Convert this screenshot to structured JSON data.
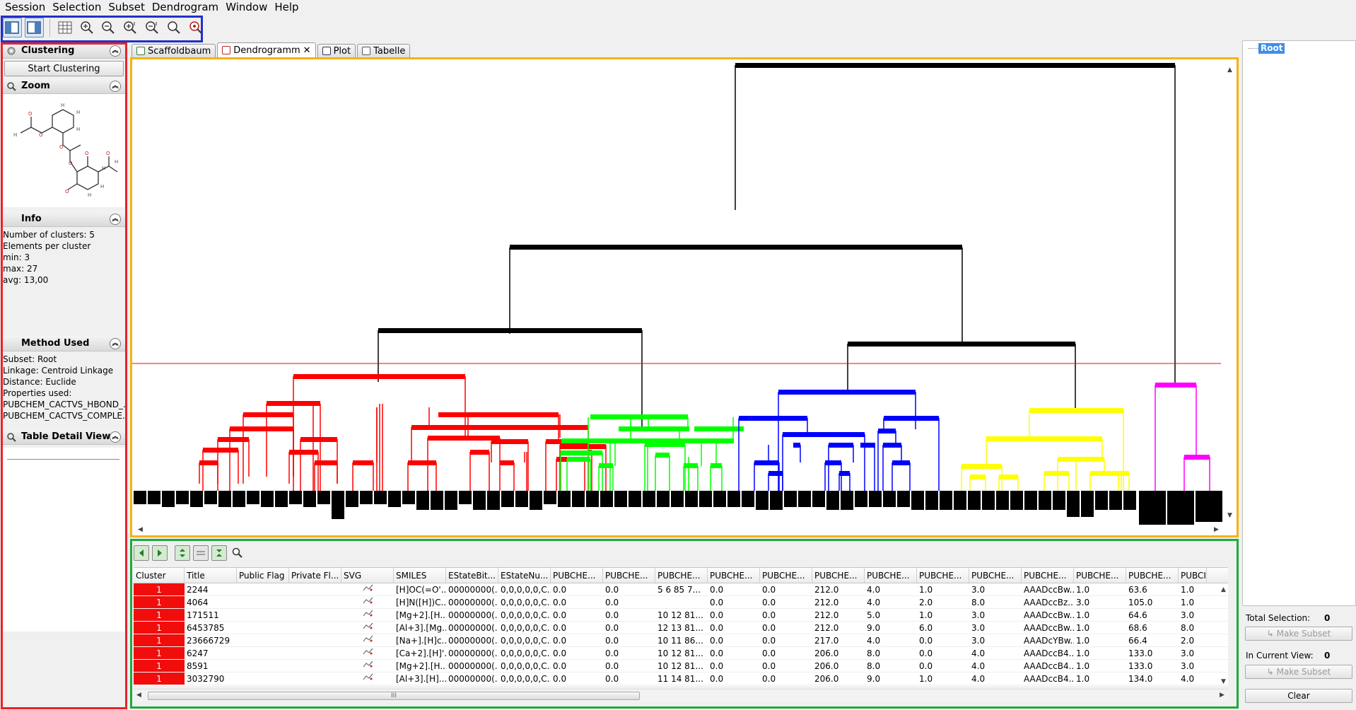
{
  "menu": [
    "Session",
    "Selection",
    "Subset",
    "Dendrogram",
    "Window",
    "Help"
  ],
  "toolbar_icons": [
    "layout-left-icon",
    "layout-right-icon",
    "grid-icon",
    "zoom-in-x-icon",
    "zoom-out-x-icon",
    "zoom-in-y-icon",
    "zoom-out-y-icon",
    "zoom-in-icon",
    "zoom-reset-icon"
  ],
  "left": {
    "clustering": {
      "title": "Clustering",
      "button": "Start Clustering"
    },
    "zoom": {
      "title": "Zoom"
    },
    "info": {
      "title": "Info",
      "lines": [
        "Number of clusters: 5",
        "Elements per cluster",
        "min: 3",
        "max: 27",
        "avg: 13,00"
      ]
    },
    "method": {
      "title": "Method Used",
      "lines": [
        "Subset: Root",
        "Linkage: Centroid Linkage",
        "Distance: Euclide",
        "Properties used:",
        "PUBCHEM_CACTVS_HBOND_...",
        "PUBCHEM_CACTVS_COMPLE..."
      ]
    },
    "table_detail": {
      "title": "Table Detail View"
    }
  },
  "tabs": [
    {
      "label": "Scaffoldbaum",
      "active": false
    },
    {
      "label": "Dendrogramm",
      "active": true,
      "close": "✕"
    },
    {
      "label": "Plot",
      "active": false
    },
    {
      "label": "Tabelle",
      "active": false
    }
  ],
  "colors": {
    "c1": "#ff0000",
    "c2": "#00ff00",
    "c3": "#0000ff",
    "c4": "#ffff00",
    "c5": "#ff00ff",
    "outline_blue": "#2430c8",
    "outline_red": "#e8232a",
    "outline_orange": "#f6b20e",
    "outline_green": "#1faa3c"
  },
  "table": {
    "columns": [
      "Cluster",
      "Title",
      "Public Flag",
      "Private Fl...",
      "SVG",
      "SMILES",
      "EStateBit...",
      "EStateNu...",
      "PUBCHE...",
      "PUBCHE...",
      "PUBCHE...",
      "PUBCHE...",
      "PUBCHE...",
      "PUBCHE...",
      "PUBCHE...",
      "PUBCHE...",
      "PUBCHE...",
      "PUBCHE...",
      "PUBCHE...",
      "PUBCHE...",
      "PUBCI"
    ],
    "rows": [
      [
        "1",
        "2244",
        "",
        "",
        "svg",
        "[H]OC(=O'...",
        "00000000(...",
        "0,0,0,0,0,C...",
        "0.0",
        "0.0",
        "5  6  85  7...",
        "0.0",
        "0.0",
        "212.0",
        "4.0",
        "1.0",
        "3.0",
        "AAADccBw...",
        "1.0",
        "63.6",
        "1.0"
      ],
      [
        "1",
        "4064",
        "",
        "",
        "svg",
        "[H]N([H])C...",
        "00000000(...",
        "0,0,0,0,0,C...",
        "0.0",
        "0.0",
        "",
        "0.0",
        "0.0",
        "212.0",
        "4.0",
        "2.0",
        "8.0",
        "AAADccBz...",
        "3.0",
        "105.0",
        "1.0"
      ],
      [
        "1",
        "171511",
        "",
        "",
        "svg",
        "[Mg+2].[H...",
        "00000000(...",
        "0,0,0,0,0,C...",
        "0.0",
        "0.0",
        "10  12  81...",
        "0.0",
        "0.0",
        "212.0",
        "5.0",
        "1.0",
        "3.0",
        "AAADccBw...",
        "1.0",
        "64.6",
        "3.0"
      ],
      [
        "1",
        "6453785",
        "",
        "",
        "svg",
        "[Al+3].[Mg...",
        "00000000(...",
        "0,0,0,0,0,C...",
        "0.0",
        "0.0",
        "12  13  81...",
        "0.0",
        "0.0",
        "212.0",
        "9.0",
        "6.0",
        "3.0",
        "AAADccBw...",
        "1.0",
        "68.6",
        "8.0"
      ],
      [
        "1",
        "23666729",
        "",
        "",
        "svg",
        "[Na+].[H]c...",
        "00000000(...",
        "0,0,0,0,0,C...",
        "0.0",
        "0.0",
        "10  11  86...",
        "0.0",
        "0.0",
        "217.0",
        "4.0",
        "0.0",
        "3.0",
        "AAADcYBw...",
        "1.0",
        "66.4",
        "2.0"
      ],
      [
        "1",
        "6247",
        "",
        "",
        "svg",
        "[Ca+2].[H]'...",
        "00000000(...",
        "0,0,0,0,0,C...",
        "0.0",
        "0.0",
        "10  12  81...",
        "0.0",
        "0.0",
        "206.0",
        "8.0",
        "0.0",
        "4.0",
        "AAADccB4...",
        "1.0",
        "133.0",
        "3.0"
      ],
      [
        "1",
        "8591",
        "",
        "",
        "svg",
        "[Mg+2].[H...",
        "00000000(...",
        "0,0,0,0,0,C...",
        "0.0",
        "0.0",
        "10  12  81...",
        "0.0",
        "0.0",
        "206.0",
        "8.0",
        "0.0",
        "4.0",
        "AAADccB4...",
        "1.0",
        "133.0",
        "3.0"
      ],
      [
        "1",
        "3032790",
        "",
        "",
        "svg",
        "[Al+3].[H]...",
        "00000000(...",
        "0,0,0,0,0,C...",
        "0.0",
        "0.0",
        "11  14  81...",
        "0.0",
        "0.0",
        "206.0",
        "9.0",
        "1.0",
        "4.0",
        "AAADccB4...",
        "1.0",
        "134.0",
        "4.0"
      ]
    ],
    "scroll_grip": "III"
  },
  "right": {
    "root": "Root",
    "total_selection_label": "Total Selection:",
    "total_selection_value": "0",
    "make_subset_1": "↳ Make Subset",
    "in_view_label": "In Current View:",
    "in_view_value": "0",
    "make_subset_2": "↳ Make Subset",
    "clear": "Clear"
  }
}
